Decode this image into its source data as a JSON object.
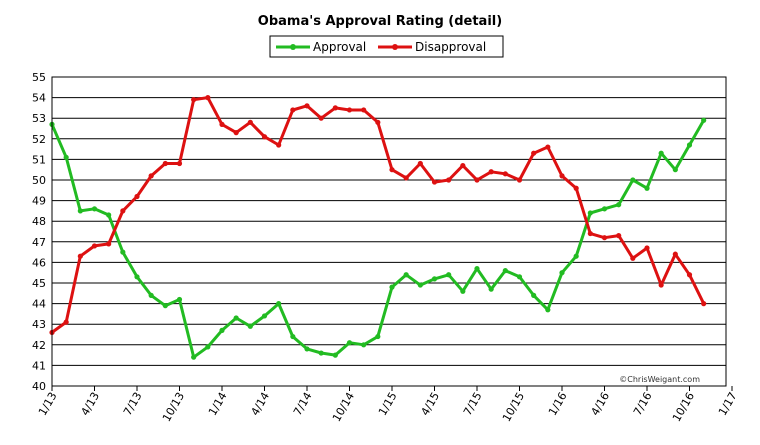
{
  "chart_data": {
    "type": "line",
    "title": "Obama's Approval Rating (detail)",
    "credit": "©ChrisWeigant.com",
    "xlabel": "",
    "ylabel": "",
    "ylim": [
      40,
      55
    ],
    "y_ticks": [
      40,
      41,
      42,
      43,
      44,
      45,
      46,
      47,
      48,
      49,
      50,
      51,
      52,
      53,
      54,
      55
    ],
    "x_tick_labels": [
      "1/13",
      "4/13",
      "7/13",
      "10/13",
      "1/14",
      "4/14",
      "7/14",
      "10/14",
      "1/15",
      "4/15",
      "7/15",
      "10/15",
      "1/16",
      "4/16",
      "7/16",
      "10/16",
      "1/17"
    ],
    "grid": true,
    "legend_position": "top-center",
    "series": [
      {
        "name": "Approval",
        "color": "#22bb22",
        "values": [
          52.7,
          51.1,
          48.5,
          48.6,
          48.3,
          46.5,
          45.3,
          44.4,
          43.9,
          44.2,
          41.4,
          41.9,
          42.7,
          43.3,
          42.9,
          43.4,
          44.0,
          42.4,
          41.8,
          41.6,
          41.5,
          42.1,
          42.0,
          42.4,
          44.8,
          45.4,
          44.9,
          45.2,
          45.4,
          44.6,
          45.7,
          44.7,
          45.6,
          45.3,
          44.4,
          43.7,
          45.5,
          46.3,
          48.4,
          48.6,
          48.8,
          50.0,
          49.6,
          51.3,
          50.5,
          51.7,
          52.9
        ]
      },
      {
        "name": "Disapproval",
        "color": "#dd1111",
        "values": [
          42.6,
          43.1,
          46.3,
          46.8,
          46.9,
          48.5,
          49.2,
          50.2,
          50.8,
          50.8,
          53.9,
          54.0,
          52.7,
          52.3,
          52.8,
          52.1,
          51.7,
          53.4,
          53.6,
          53.0,
          53.5,
          53.4,
          53.4,
          52.8,
          50.5,
          50.1,
          50.8,
          49.9,
          50.0,
          50.7,
          50.0,
          50.4,
          50.3,
          50.0,
          51.3,
          51.6,
          50.2,
          49.6,
          47.4,
          47.2,
          47.3,
          46.2,
          46.7,
          44.9,
          46.4,
          45.4,
          44.0
        ]
      }
    ]
  }
}
